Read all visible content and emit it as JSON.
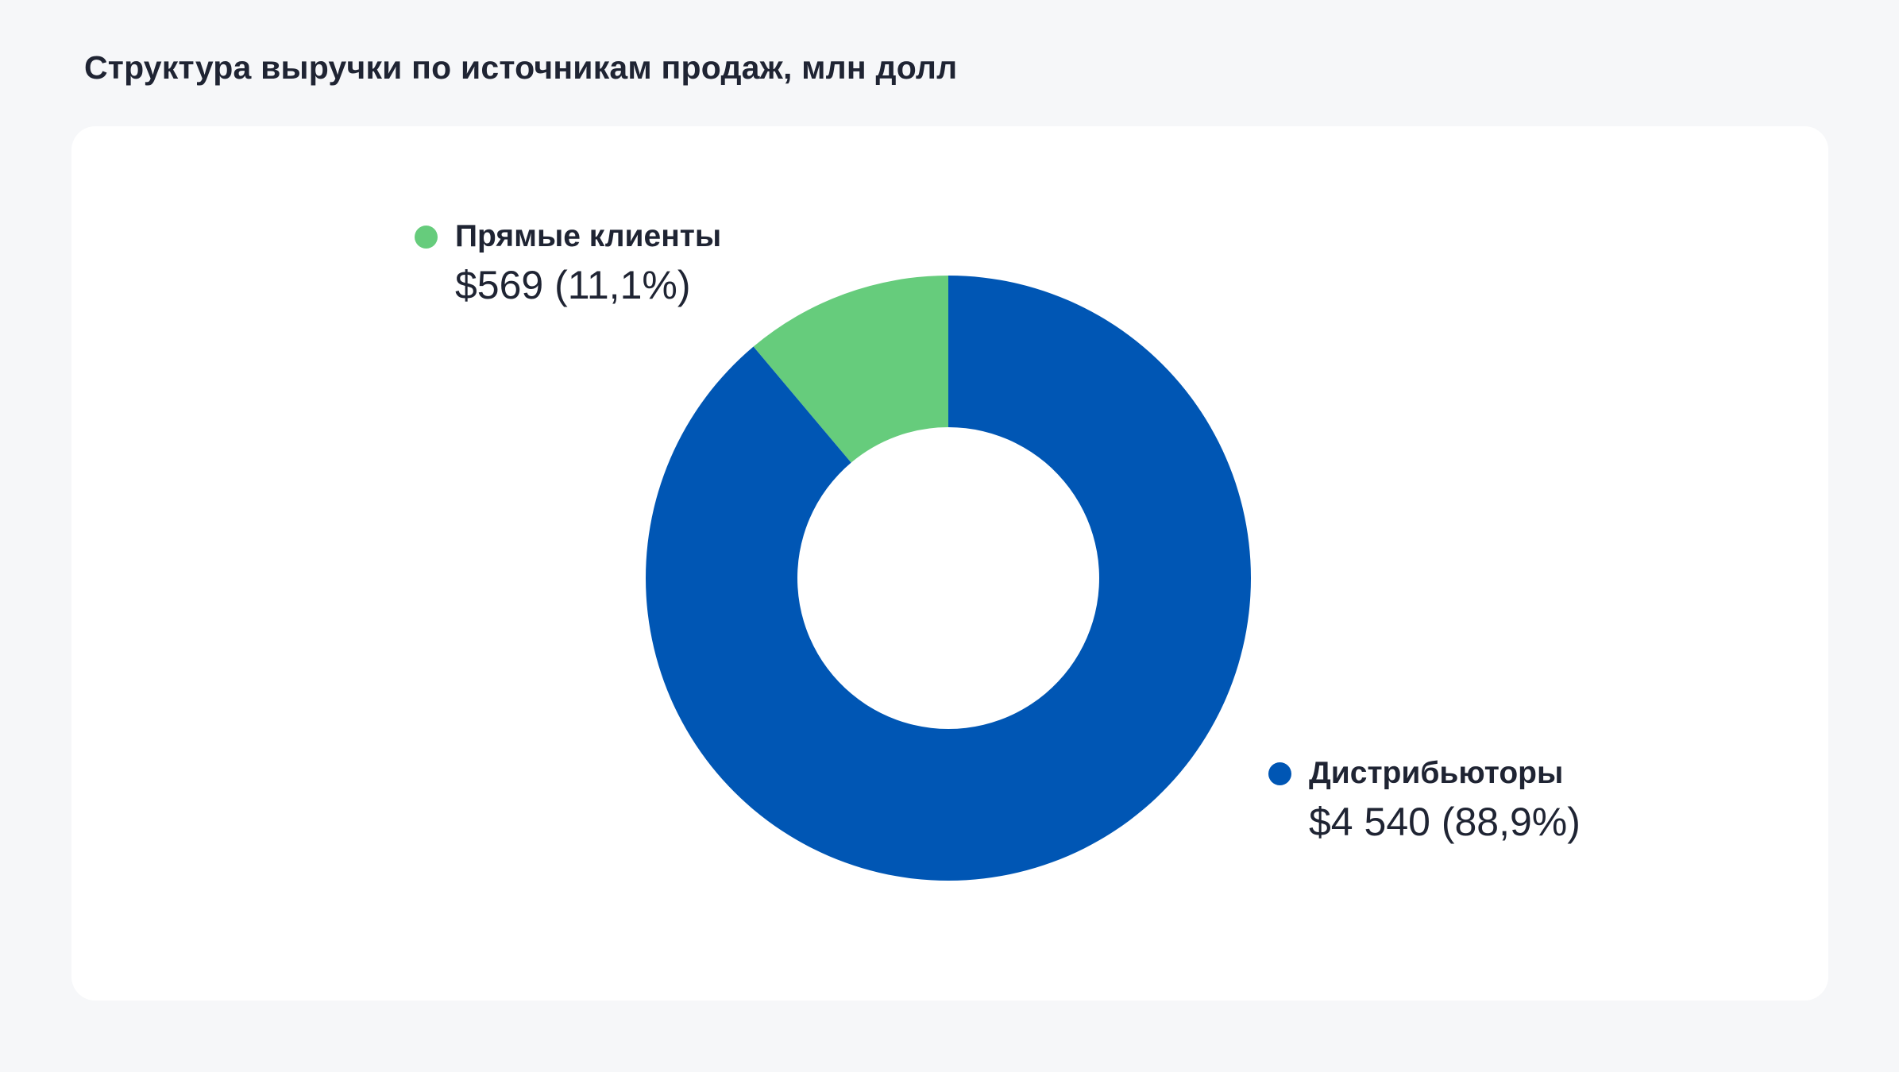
{
  "title": "Структура выручки по источникам продаж, млн долл",
  "chart_data": {
    "type": "pie",
    "variant": "donut",
    "categories": [
      "Прямые клиенты",
      "Дистрибьюторы"
    ],
    "values": [
      569,
      4540
    ],
    "percent_labels": [
      "11,1%",
      "88,9%"
    ],
    "value_labels": [
      "$569 (11,1%)",
      "$4 540 (88,9%)"
    ],
    "colors": [
      "#66cc7c",
      "#0056b4"
    ],
    "start_angle_deg": 0,
    "direction": "counterclockwise-from-top for first slice",
    "legend": "inline labels near slices"
  }
}
